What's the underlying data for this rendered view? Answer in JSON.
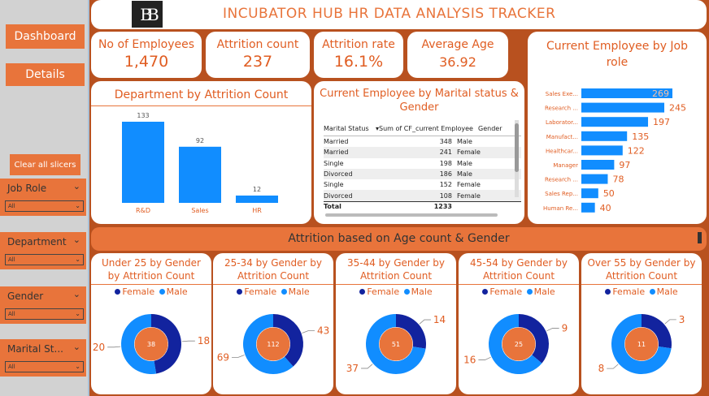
{
  "sidebar": {
    "dashboard": "Dashboard",
    "details": "Details",
    "clear": "Clear all slicers",
    "slicers": [
      {
        "label": "Job Role",
        "value": "All"
      },
      {
        "label": "Department",
        "value": "All"
      },
      {
        "label": "Gender",
        "value": "All"
      },
      {
        "label": "Marital St...",
        "value": "All"
      }
    ]
  },
  "header": {
    "logo": "BB",
    "title": "INCUBATOR HUB HR DATA ANALYSIS TRACKER"
  },
  "kpis": [
    {
      "label": "No of Employees",
      "value": "1,470"
    },
    {
      "label": "Attrition count",
      "value": "237"
    },
    {
      "label": "Attrition rate",
      "value": "16.1%"
    },
    {
      "label": "Average Age",
      "value": "36.92"
    }
  ],
  "colors": {
    "bar": "#118dff",
    "female": "#12239e",
    "male": "#118dff",
    "accent": "#e8743b",
    "hole": "#e8743b"
  },
  "dept_chart": {
    "title": "Department by Attrition Count",
    "chart_data": {
      "type": "bar",
      "categories": [
        "R&D",
        "Sales",
        "HR"
      ],
      "values": [
        133,
        92,
        12
      ]
    }
  },
  "marital": {
    "title": "Current Employee by Marital status & Gender",
    "headers": [
      "Marital Status",
      "Sum of CF_current Employee",
      "Gender"
    ],
    "rows": [
      [
        "Married",
        "348",
        "Male"
      ],
      [
        "Married",
        "241",
        "Female"
      ],
      [
        "Single",
        "198",
        "Male"
      ],
      [
        "Divorced",
        "186",
        "Male"
      ],
      [
        "Single",
        "152",
        "Female"
      ],
      [
        "Divorced",
        "108",
        "Female"
      ]
    ],
    "total_label": "Total",
    "total_value": "1233"
  },
  "job_chart": {
    "title": "Current Employee by Job role",
    "chart_data": {
      "type": "bar",
      "categories": [
        "Sales Exe...",
        "Research ...",
        "Laborator...",
        "Manufact...",
        "Healthcar...",
        "Manager",
        "Research ...",
        "Sales Rep...",
        "Human Re..."
      ],
      "values": [
        269,
        245,
        197,
        135,
        122,
        97,
        78,
        50,
        40
      ]
    }
  },
  "band_title": "Attrition based on Age count & Gender",
  "legend": {
    "female": "Female",
    "male": "Male"
  },
  "donuts": [
    {
      "title": "Under 25 by Gender by Attrition Count",
      "female": 18,
      "male": 20,
      "total": "38"
    },
    {
      "title": "25-34 by Gender by Attrition Count",
      "female": 43,
      "male": 69,
      "total": "112"
    },
    {
      "title": "35-44 by Gender by Attrition Count",
      "female": 14,
      "male": 37,
      "total": "51"
    },
    {
      "title": "45-54 by Gender by Attrition Count",
      "female": 9,
      "male": 16,
      "total": "25"
    },
    {
      "title": "Over 55 by Gender by Attrition Count",
      "female": 3,
      "male": 8,
      "total": "11"
    }
  ]
}
